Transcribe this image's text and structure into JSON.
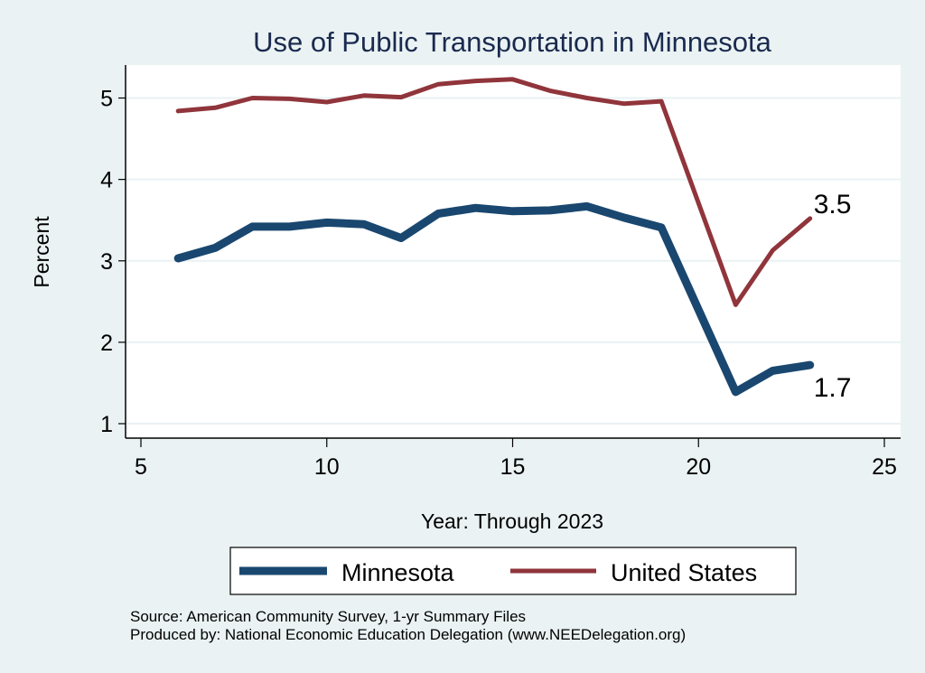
{
  "chart_data": {
    "type": "line",
    "title": "Use of Public Transportation in Minnesota",
    "xlabel": "Year: Through 2023",
    "ylabel": "Percent",
    "xlim": [
      5,
      25
    ],
    "ylim": [
      1,
      5
    ],
    "x_ticks": [
      5,
      10,
      15,
      20,
      25
    ],
    "y_ticks": [
      1,
      2,
      3,
      4,
      5
    ],
    "grid": "horizontal",
    "x": [
      6,
      7,
      8,
      9,
      10,
      11,
      12,
      13,
      14,
      15,
      16,
      17,
      18,
      19,
      21,
      22,
      23
    ],
    "series": [
      {
        "name": "Minnesota",
        "color": "#1a476f",
        "values": [
          3.03,
          3.16,
          3.42,
          3.42,
          3.47,
          3.45,
          3.28,
          3.58,
          3.65,
          3.61,
          3.62,
          3.67,
          3.53,
          3.41,
          1.39,
          1.65,
          1.72
        ],
        "end_label": "1.7"
      },
      {
        "name": "United States",
        "color": "#90353b",
        "values": [
          4.84,
          4.88,
          5.0,
          4.99,
          4.95,
          5.03,
          5.01,
          5.17,
          5.21,
          5.23,
          5.09,
          5.0,
          4.93,
          4.96,
          2.46,
          3.13,
          3.52
        ],
        "end_label": "3.5"
      }
    ],
    "legend": {
      "position": "bottom",
      "entries": [
        "Minnesota",
        "United States"
      ]
    },
    "notes": [
      "Source: American Community Survey, 1-yr Summary Files",
      "Produced by: National Economic Education Delegation (www.NEEDelegation.org)"
    ]
  }
}
